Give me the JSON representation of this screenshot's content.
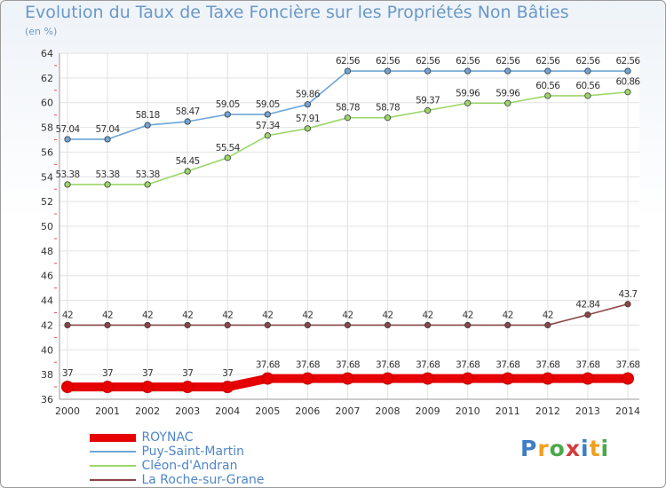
{
  "chart_data": {
    "type": "line",
    "title": "Evolution du Taux de Taxe Foncière sur les Propriétés Non Bâties",
    "ylabel": "(en %)",
    "xlabel": "",
    "ylim": [
      36,
      64
    ],
    "yticks": [
      "36",
      "38",
      "40",
      "42",
      "44",
      "46",
      "48",
      "50",
      "52",
      "54",
      "56",
      "58",
      "60",
      "62",
      "64"
    ],
    "categories": [
      "2000",
      "2001",
      "2002",
      "2003",
      "2004",
      "2005",
      "2006",
      "2007",
      "2008",
      "2009",
      "2010",
      "2011",
      "2012",
      "2013",
      "2014"
    ],
    "series": [
      {
        "name": "ROYNAC",
        "color": "#e60000",
        "values": [
          37,
          37,
          37,
          37,
          37,
          37.68,
          37.68,
          37.68,
          37.68,
          37.68,
          37.68,
          37.68,
          37.68,
          37.68,
          37.68
        ],
        "labels": [
          "37",
          "37",
          "37",
          "37",
          "37",
          "37.68",
          "37.68",
          "37.68",
          "37.68",
          "37.68",
          "37.68",
          "37.68",
          "37.68",
          "37.68",
          "37.68"
        ]
      },
      {
        "name": "Puy-Saint-Martin",
        "color": "#6fa5d6",
        "values": [
          57.04,
          57.04,
          58.18,
          58.47,
          59.05,
          59.05,
          59.86,
          62.56,
          62.56,
          62.56,
          62.56,
          62.56,
          62.56,
          62.56,
          62.56
        ],
        "labels": [
          "57.04",
          "57.04",
          "58.18",
          "58.47",
          "59.05",
          "59.05",
          "59.86",
          "62.56",
          "62.56",
          "62.56",
          "62.56",
          "62.56",
          "62.56",
          "62.56",
          "62.56"
        ]
      },
      {
        "name": "Cléon-d'Andran",
        "color": "#9bd66a",
        "values": [
          53.38,
          53.38,
          53.38,
          54.45,
          55.54,
          57.34,
          57.91,
          58.78,
          58.78,
          59.37,
          59.96,
          59.96,
          60.56,
          60.56,
          60.86
        ],
        "labels": [
          "53.38",
          "53.38",
          "53.38",
          "54.45",
          "55.54",
          "57.34",
          "57.91",
          "58.78",
          "58.78",
          "59.37",
          "59.96",
          "59.96",
          "60.56",
          "60.56",
          "60.86"
        ]
      },
      {
        "name": "La Roche-sur-Grane",
        "color": "#8b4545",
        "values": [
          42,
          42,
          42,
          42,
          42,
          42,
          42,
          42,
          42,
          42,
          42,
          42,
          42,
          42.84,
          43.7
        ],
        "labels": [
          "42",
          "42",
          "42",
          "42",
          "42",
          "42",
          "42",
          "42",
          "42",
          "42",
          "42",
          "42",
          "42",
          "42.84",
          "43.7"
        ]
      }
    ]
  },
  "logo": {
    "letters": [
      "P",
      "r",
      "o",
      "x",
      "i",
      "t",
      "i"
    ]
  }
}
